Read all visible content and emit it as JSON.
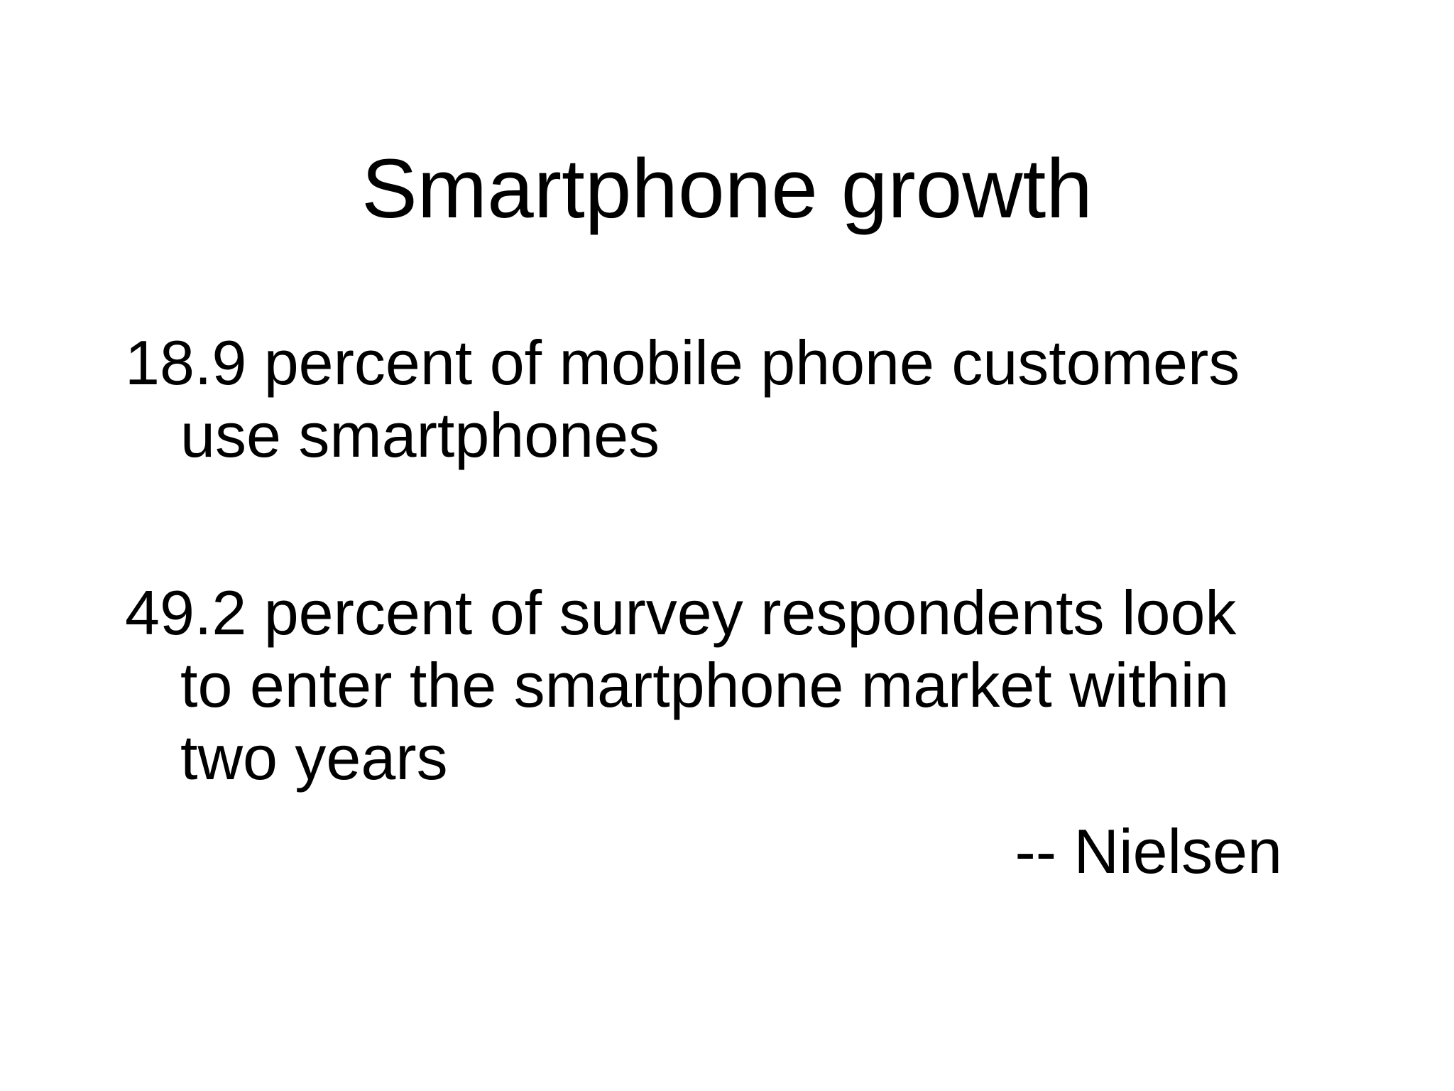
{
  "slide": {
    "title": "Smartphone growth",
    "bullets": [
      "18.9 percent of mobile phone customers use smartphones",
      "49.2 percent of survey respondents look to enter the smartphone market within two years"
    ],
    "attribution": "-- Nielsen"
  }
}
